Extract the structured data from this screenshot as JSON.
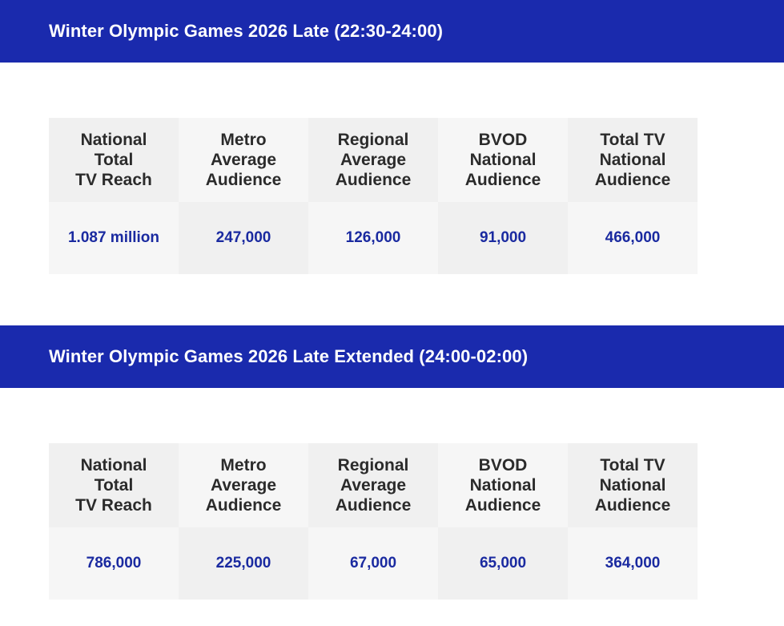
{
  "sections": [
    {
      "title": "Winter Olympic Games 2026 Late (22:30-24:00)",
      "headers": [
        "National\nTotal\nTV Reach",
        "Metro\nAverage\nAudience",
        "Regional\nAverage\nAudience",
        "BVOD\nNational\nAudience",
        "Total TV\nNational\nAudience"
      ],
      "values": [
        "1.087 million",
        "247,000",
        "126,000",
        "91,000",
        "466,000"
      ]
    },
    {
      "title": "Winter Olympic Games 2026 Late Extended (24:00-02:00)",
      "headers": [
        "National\nTotal\nTV Reach",
        "Metro\nAverage\nAudience",
        "Regional\nAverage\nAudience",
        "BVOD\nNational\nAudience",
        "Total TV\nNational\nAudience"
      ],
      "values": [
        "786,000",
        "225,000",
        "67,000",
        "65,000",
        "364,000"
      ]
    }
  ],
  "colors": {
    "banner": "#1a2aad",
    "value_text": "#1a2aa0",
    "header_text": "#2b2b2b",
    "cell_dark": "#f0f0f0",
    "cell_light": "#f6f6f6"
  }
}
